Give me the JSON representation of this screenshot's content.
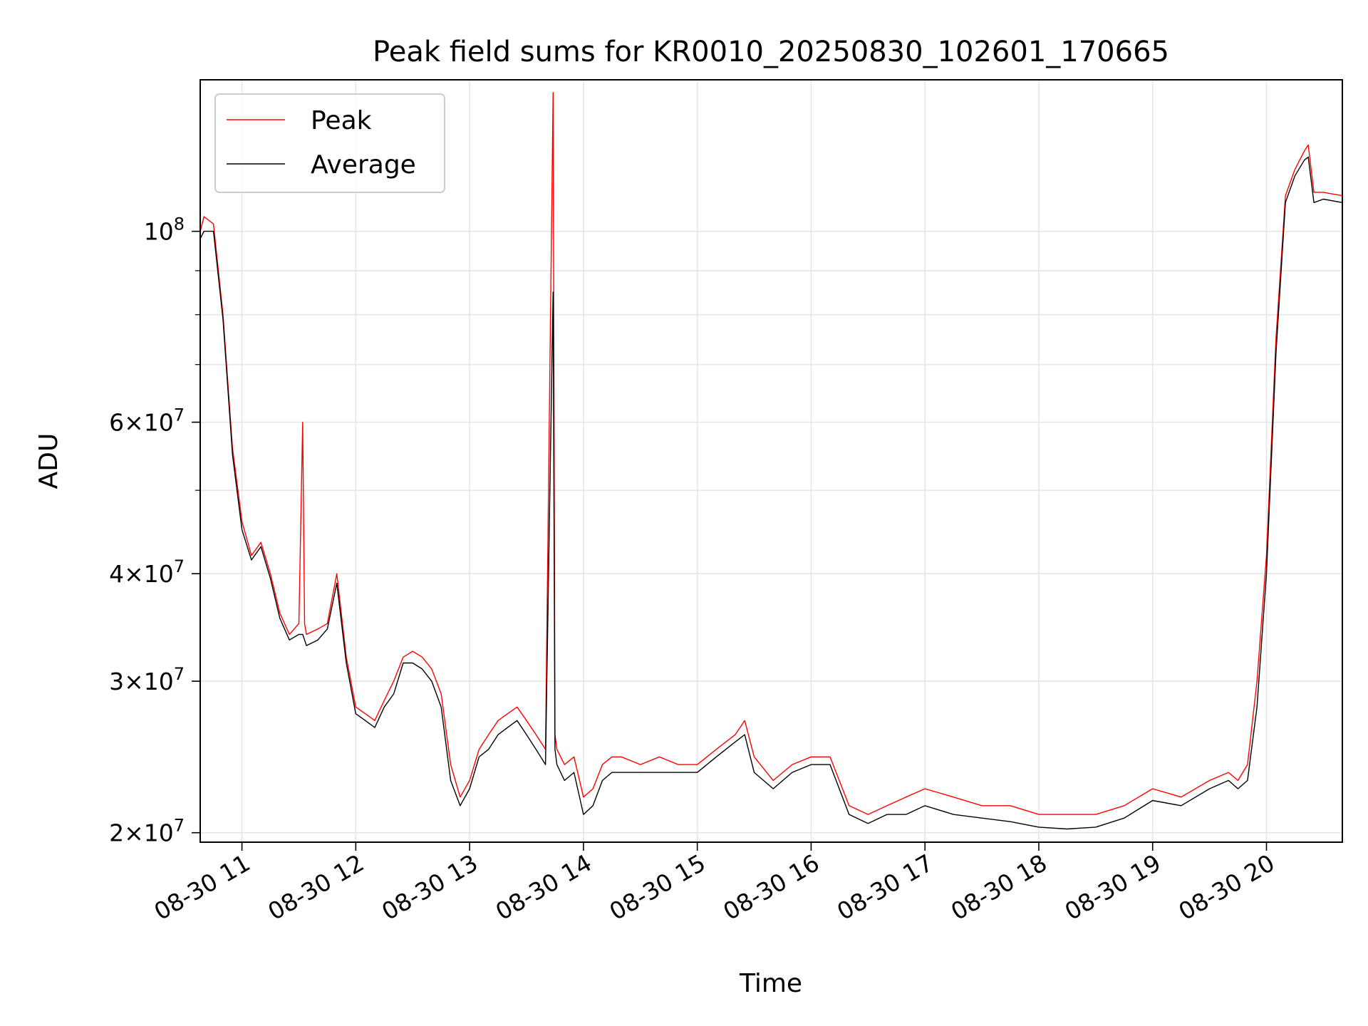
{
  "chart_data": {
    "type": "line",
    "title": "Peak field sums for KR0010_20250830_102601_170665",
    "xlabel": "Time",
    "ylabel": "ADU",
    "yscale": "log",
    "grid": true,
    "legend_position": "upper-left",
    "xlim": [
      "2025-08-30 10:38",
      "2025-08-30 20:40"
    ],
    "ylim": [
      19500000,
      150000000
    ],
    "x_ticks": [
      "08-30 11",
      "08-30 12",
      "08-30 13",
      "08-30 14",
      "08-30 15",
      "08-30 16",
      "08-30 17",
      "08-30 18",
      "08-30 19",
      "08-30 20"
    ],
    "y_ticks": [
      {
        "value": 20000000,
        "base": "2",
        "exp": "7"
      },
      {
        "value": 30000000,
        "base": "3",
        "exp": "7"
      },
      {
        "value": 40000000,
        "base": "4",
        "exp": "7"
      },
      {
        "value": 60000000,
        "base": "6",
        "exp": "7"
      },
      {
        "value": 100000000,
        "base": "",
        "exp": "8"
      }
    ],
    "series": [
      {
        "name": "Peak",
        "color": "#ff0000",
        "x": [
          "10:38",
          "10:40",
          "10:45",
          "10:50",
          "10:55",
          "11:00",
          "11:05",
          "11:10",
          "11:15",
          "11:20",
          "11:25",
          "11:30",
          "11:32",
          "11:33",
          "11:34",
          "11:40",
          "11:45",
          "11:50",
          "11:55",
          "12:00",
          "12:05",
          "12:10",
          "12:15",
          "12:20",
          "12:25",
          "12:30",
          "12:35",
          "12:40",
          "12:45",
          "12:50",
          "12:55",
          "13:00",
          "13:05",
          "13:10",
          "13:15",
          "13:20",
          "13:25",
          "13:30",
          "13:35",
          "13:40",
          "13:44",
          "13:45",
          "13:46",
          "13:50",
          "13:55",
          "14:00",
          "14:05",
          "14:10",
          "14:15",
          "14:20",
          "14:30",
          "14:40",
          "14:50",
          "15:00",
          "15:10",
          "15:20",
          "15:25",
          "15:30",
          "15:40",
          "15:50",
          "16:00",
          "16:10",
          "16:20",
          "16:30",
          "16:40",
          "16:50",
          "17:00",
          "17:15",
          "17:30",
          "17:45",
          "18:00",
          "18:15",
          "18:30",
          "18:45",
          "19:00",
          "19:15",
          "19:30",
          "19:40",
          "19:45",
          "19:50",
          "19:55",
          "20:00",
          "20:05",
          "20:10",
          "20:15",
          "20:20",
          "20:22",
          "20:25",
          "20:30",
          "20:40"
        ],
        "y": [
          100000000,
          104000000,
          102000000,
          80000000,
          56000000,
          46000000,
          42000000,
          43500000,
          40000000,
          36000000,
          34000000,
          35000000,
          60000000,
          35000000,
          34000000,
          34500000,
          35000000,
          40000000,
          32000000,
          28000000,
          27500000,
          27000000,
          28500000,
          30000000,
          32000000,
          32500000,
          32000000,
          31000000,
          29000000,
          24000000,
          22000000,
          23000000,
          25000000,
          26000000,
          27000000,
          27500000,
          28000000,
          27000000,
          26000000,
          25000000,
          145000000,
          26000000,
          25000000,
          24000000,
          24500000,
          22000000,
          22500000,
          24000000,
          24500000,
          24500000,
          24000000,
          24500000,
          24000000,
          24000000,
          25000000,
          26000000,
          27000000,
          24500000,
          23000000,
          24000000,
          24500000,
          24500000,
          21500000,
          21000000,
          21500000,
          22000000,
          22500000,
          22000000,
          21500000,
          21500000,
          21000000,
          21000000,
          21000000,
          21500000,
          22500000,
          22000000,
          23000000,
          23500000,
          23000000,
          24000000,
          30000000,
          42000000,
          75000000,
          110000000,
          118000000,
          124000000,
          126000000,
          111000000,
          111000000,
          110000000
        ]
      },
      {
        "name": "Average",
        "color": "#000000",
        "x": [
          "10:38",
          "10:40",
          "10:45",
          "10:50",
          "10:55",
          "11:00",
          "11:05",
          "11:10",
          "11:15",
          "11:20",
          "11:25",
          "11:30",
          "11:32",
          "11:33",
          "11:34",
          "11:40",
          "11:45",
          "11:50",
          "11:55",
          "12:00",
          "12:05",
          "12:10",
          "12:15",
          "12:20",
          "12:25",
          "12:30",
          "12:35",
          "12:40",
          "12:45",
          "12:50",
          "12:55",
          "13:00",
          "13:05",
          "13:10",
          "13:15",
          "13:20",
          "13:25",
          "13:30",
          "13:35",
          "13:40",
          "13:44",
          "13:45",
          "13:46",
          "13:50",
          "13:55",
          "14:00",
          "14:05",
          "14:10",
          "14:15",
          "14:20",
          "14:30",
          "14:40",
          "14:50",
          "15:00",
          "15:10",
          "15:20",
          "15:25",
          "15:30",
          "15:40",
          "15:50",
          "16:00",
          "16:10",
          "16:20",
          "16:30",
          "16:40",
          "16:50",
          "17:00",
          "17:15",
          "17:30",
          "17:45",
          "18:00",
          "18:15",
          "18:30",
          "18:45",
          "19:00",
          "19:15",
          "19:30",
          "19:40",
          "19:45",
          "19:50",
          "19:55",
          "20:00",
          "20:05",
          "20:10",
          "20:15",
          "20:20",
          "20:22",
          "20:25",
          "20:30",
          "20:40"
        ],
        "y": [
          98000000,
          100000000,
          100000000,
          79000000,
          55000000,
          45000000,
          41500000,
          43000000,
          39500000,
          35500000,
          33500000,
          34000000,
          34000000,
          33500000,
          33000000,
          33500000,
          34500000,
          39000000,
          31500000,
          27500000,
          27000000,
          26500000,
          28000000,
          29000000,
          31500000,
          31500000,
          31000000,
          30000000,
          28000000,
          23000000,
          21500000,
          22500000,
          24500000,
          25000000,
          26000000,
          26500000,
          27000000,
          26000000,
          25000000,
          24000000,
          85000000,
          25000000,
          24000000,
          23000000,
          23500000,
          21000000,
          21500000,
          23000000,
          23500000,
          23500000,
          23500000,
          23500000,
          23500000,
          23500000,
          24500000,
          25500000,
          26000000,
          23500000,
          22500000,
          23500000,
          24000000,
          24000000,
          21000000,
          20500000,
          21000000,
          21000000,
          21500000,
          21000000,
          20800000,
          20600000,
          20300000,
          20200000,
          20300000,
          20800000,
          21800000,
          21500000,
          22500000,
          23000000,
          22500000,
          23000000,
          28000000,
          40000000,
          72000000,
          108000000,
          116000000,
          121000000,
          122000000,
          108000000,
          109000000,
          108000000
        ]
      }
    ]
  }
}
